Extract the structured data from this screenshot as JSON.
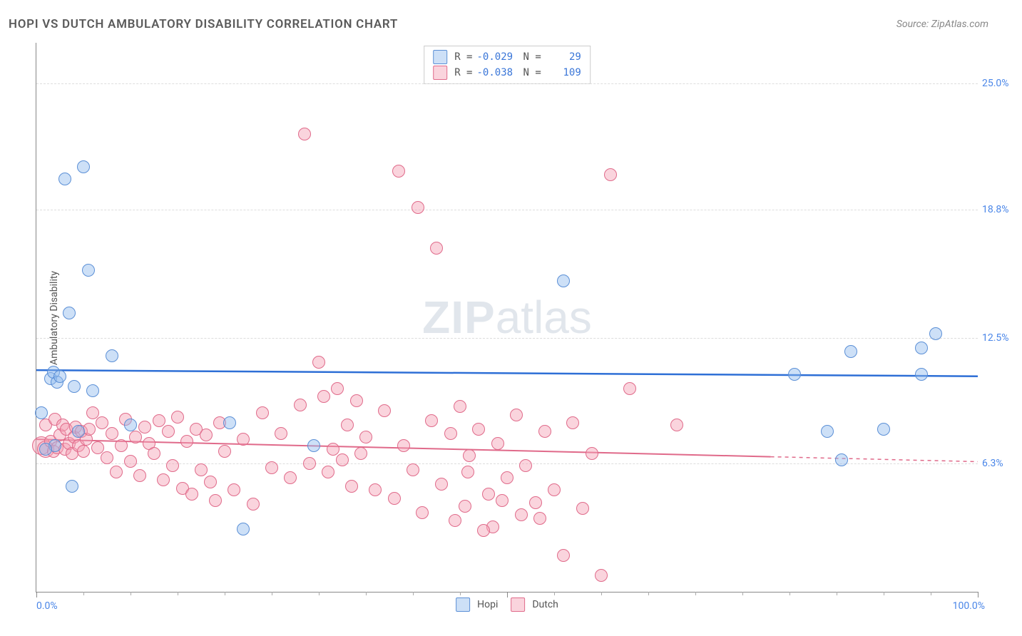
{
  "title": "HOPI VS DUTCH AMBULATORY DISABILITY CORRELATION CHART",
  "source": "Source: ZipAtlas.com",
  "ylabel": "Ambulatory Disability",
  "watermark_zip": "ZIP",
  "watermark_atlas": "atlas",
  "xaxis": {
    "min_label": "0.0%",
    "max_label": "100.0%",
    "min": 0,
    "max": 100
  },
  "yaxis": {
    "min": 0,
    "max": 27,
    "gridlines": [
      {
        "y": 25.0,
        "label": "25.0%"
      },
      {
        "y": 18.8,
        "label": "18.8%"
      },
      {
        "y": 12.5,
        "label": "12.5%"
      },
      {
        "y": 6.3,
        "label": "6.3%"
      }
    ]
  },
  "x_ticks_major": [
    0,
    50,
    100
  ],
  "x_ticks_minor": [
    5,
    10,
    15,
    20,
    25,
    30,
    35,
    40,
    45,
    55,
    60,
    65,
    70,
    75,
    80,
    85,
    90,
    95
  ],
  "colors": {
    "hopi_fill": "rgba(144,187,237,0.45)",
    "hopi_stroke": "#5b8fd6",
    "dutch_fill": "rgba(245,160,180,0.45)",
    "dutch_stroke": "#e06a8a",
    "hopi_line": "#2e6fd6",
    "dutch_line": "#e06a8a",
    "axis_tick_label": "#4a86e8"
  },
  "point_radius": 9,
  "series": {
    "hopi": {
      "name": "Hopi",
      "R": "-0.029",
      "N": "29",
      "trend": {
        "y_at_x0": 10.9,
        "y_at_x100": 10.6
      },
      "points": [
        {
          "x": 0.5,
          "y": 8.8
        },
        {
          "x": 1.5,
          "y": 10.5
        },
        {
          "x": 1.8,
          "y": 10.8
        },
        {
          "x": 2.2,
          "y": 10.3
        },
        {
          "x": 2.5,
          "y": 10.6
        },
        {
          "x": 3.0,
          "y": 20.3
        },
        {
          "x": 3.5,
          "y": 13.7
        },
        {
          "x": 3.8,
          "y": 5.2
        },
        {
          "x": 4.0,
          "y": 10.1
        },
        {
          "x": 4.5,
          "y": 7.9
        },
        {
          "x": 5.0,
          "y": 20.9
        },
        {
          "x": 5.5,
          "y": 15.8
        },
        {
          "x": 6.0,
          "y": 9.9
        },
        {
          "x": 8.0,
          "y": 11.6
        },
        {
          "x": 10.0,
          "y": 8.2
        },
        {
          "x": 20.5,
          "y": 8.3
        },
        {
          "x": 22.0,
          "y": 3.1
        },
        {
          "x": 29.5,
          "y": 7.2
        },
        {
          "x": 56.0,
          "y": 15.3
        },
        {
          "x": 80.5,
          "y": 10.7
        },
        {
          "x": 84.0,
          "y": 7.9
        },
        {
          "x": 85.5,
          "y": 6.5
        },
        {
          "x": 86.5,
          "y": 11.8
        },
        {
          "x": 90.0,
          "y": 8.0
        },
        {
          "x": 94.0,
          "y": 12.0
        },
        {
          "x": 94.0,
          "y": 10.7
        },
        {
          "x": 95.5,
          "y": 12.7
        },
        {
          "x": 2.0,
          "y": 7.2
        },
        {
          "x": 1.0,
          "y": 7.0
        }
      ]
    },
    "dutch": {
      "name": "Dutch",
      "R": "-0.038",
      "N": "109",
      "trend": {
        "y_at_x0": 7.5,
        "y_at_x100_frac": 0.78,
        "y_at_x100": 6.4
      },
      "points": [
        {
          "x": 0.5,
          "y": 7.2,
          "r": 13
        },
        {
          "x": 1.0,
          "y": 7.0,
          "r": 12
        },
        {
          "x": 1.0,
          "y": 8.2
        },
        {
          "x": 1.5,
          "y": 7.4
        },
        {
          "x": 1.8,
          "y": 6.9
        },
        {
          "x": 2.0,
          "y": 8.5
        },
        {
          "x": 2.2,
          "y": 7.1
        },
        {
          "x": 2.5,
          "y": 7.7
        },
        {
          "x": 2.8,
          "y": 8.2
        },
        {
          "x": 3.0,
          "y": 7.0
        },
        {
          "x": 3.2,
          "y": 8.0
        },
        {
          "x": 3.5,
          "y": 7.3
        },
        {
          "x": 3.8,
          "y": 6.8
        },
        {
          "x": 4.0,
          "y": 7.6
        },
        {
          "x": 4.2,
          "y": 8.1
        },
        {
          "x": 4.5,
          "y": 7.2
        },
        {
          "x": 4.8,
          "y": 7.9
        },
        {
          "x": 5.0,
          "y": 6.9
        },
        {
          "x": 5.3,
          "y": 7.5
        },
        {
          "x": 5.6,
          "y": 8.0
        },
        {
          "x": 6.0,
          "y": 8.8
        },
        {
          "x": 6.5,
          "y": 7.1
        },
        {
          "x": 7.0,
          "y": 8.3
        },
        {
          "x": 7.5,
          "y": 6.6
        },
        {
          "x": 8.0,
          "y": 7.8
        },
        {
          "x": 8.5,
          "y": 5.9
        },
        {
          "x": 9.0,
          "y": 7.2
        },
        {
          "x": 9.5,
          "y": 8.5
        },
        {
          "x": 10.0,
          "y": 6.4
        },
        {
          "x": 10.5,
          "y": 7.6
        },
        {
          "x": 11.0,
          "y": 5.7
        },
        {
          "x": 11.5,
          "y": 8.1
        },
        {
          "x": 12.0,
          "y": 7.3
        },
        {
          "x": 12.5,
          "y": 6.8
        },
        {
          "x": 13.0,
          "y": 8.4
        },
        {
          "x": 13.5,
          "y": 5.5
        },
        {
          "x": 14.0,
          "y": 7.9
        },
        {
          "x": 14.5,
          "y": 6.2
        },
        {
          "x": 15.0,
          "y": 8.6
        },
        {
          "x": 15.5,
          "y": 5.1
        },
        {
          "x": 16.0,
          "y": 7.4
        },
        {
          "x": 16.5,
          "y": 4.8
        },
        {
          "x": 17.0,
          "y": 8.0
        },
        {
          "x": 17.5,
          "y": 6.0
        },
        {
          "x": 18.0,
          "y": 7.7
        },
        {
          "x": 18.5,
          "y": 5.4
        },
        {
          "x": 19.0,
          "y": 4.5
        },
        {
          "x": 19.5,
          "y": 8.3
        },
        {
          "x": 20.0,
          "y": 6.9
        },
        {
          "x": 21.0,
          "y": 5.0
        },
        {
          "x": 22.0,
          "y": 7.5
        },
        {
          "x": 23.0,
          "y": 4.3
        },
        {
          "x": 24.0,
          "y": 8.8
        },
        {
          "x": 25.0,
          "y": 6.1
        },
        {
          "x": 26.0,
          "y": 7.8
        },
        {
          "x": 27.0,
          "y": 5.6
        },
        {
          "x": 28.0,
          "y": 9.2
        },
        {
          "x": 28.5,
          "y": 22.5
        },
        {
          "x": 29.0,
          "y": 6.3
        },
        {
          "x": 30.0,
          "y": 11.3
        },
        {
          "x": 30.5,
          "y": 9.6
        },
        {
          "x": 31.0,
          "y": 5.9
        },
        {
          "x": 31.5,
          "y": 7.0
        },
        {
          "x": 32.0,
          "y": 10.0
        },
        {
          "x": 32.5,
          "y": 6.5
        },
        {
          "x": 33.0,
          "y": 8.2
        },
        {
          "x": 33.5,
          "y": 5.2
        },
        {
          "x": 34.0,
          "y": 9.4
        },
        {
          "x": 34.5,
          "y": 6.8
        },
        {
          "x": 35.0,
          "y": 7.6
        },
        {
          "x": 36.0,
          "y": 5.0
        },
        {
          "x": 37.0,
          "y": 8.9
        },
        {
          "x": 38.0,
          "y": 4.6
        },
        {
          "x": 38.5,
          "y": 20.7
        },
        {
          "x": 39.0,
          "y": 7.2
        },
        {
          "x": 40.0,
          "y": 6.0
        },
        {
          "x": 40.5,
          "y": 18.9
        },
        {
          "x": 41.0,
          "y": 3.9
        },
        {
          "x": 42.0,
          "y": 8.4
        },
        {
          "x": 42.5,
          "y": 16.9
        },
        {
          "x": 43.0,
          "y": 5.3
        },
        {
          "x": 44.0,
          "y": 7.8
        },
        {
          "x": 44.5,
          "y": 3.5
        },
        {
          "x": 45.0,
          "y": 9.1
        },
        {
          "x": 45.5,
          "y": 4.2
        },
        {
          "x": 46.0,
          "y": 6.7
        },
        {
          "x": 47.0,
          "y": 8.0
        },
        {
          "x": 48.0,
          "y": 4.8
        },
        {
          "x": 48.5,
          "y": 3.2
        },
        {
          "x": 49.0,
          "y": 7.3
        },
        {
          "x": 50.0,
          "y": 5.6
        },
        {
          "x": 51.0,
          "y": 8.7
        },
        {
          "x": 51.5,
          "y": 3.8
        },
        {
          "x": 52.0,
          "y": 6.2
        },
        {
          "x": 53.0,
          "y": 4.4
        },
        {
          "x": 54.0,
          "y": 7.9
        },
        {
          "x": 55.0,
          "y": 5.0
        },
        {
          "x": 56.0,
          "y": 1.8
        },
        {
          "x": 57.0,
          "y": 8.3
        },
        {
          "x": 58.0,
          "y": 4.1
        },
        {
          "x": 59.0,
          "y": 6.8
        },
        {
          "x": 60.0,
          "y": 0.8
        },
        {
          "x": 61.0,
          "y": 20.5
        },
        {
          "x": 63.0,
          "y": 10.0
        },
        {
          "x": 68.0,
          "y": 8.2
        },
        {
          "x": 45.8,
          "y": 5.9
        },
        {
          "x": 47.5,
          "y": 3.0
        },
        {
          "x": 49.5,
          "y": 4.5
        },
        {
          "x": 53.5,
          "y": 3.6
        }
      ]
    }
  }
}
